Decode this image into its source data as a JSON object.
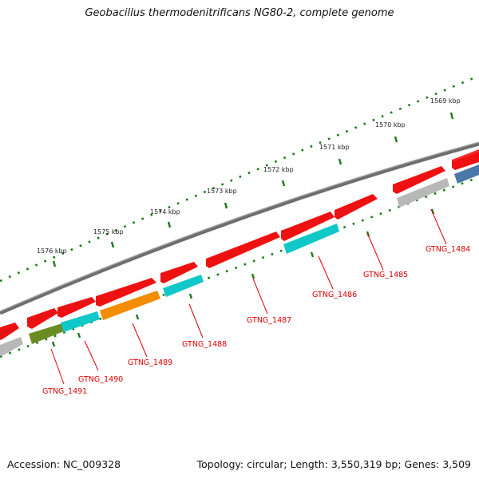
{
  "title": "Geobacillus thermodenitrificans NG80-2, complete genome",
  "accession": "Accession: NC_009328",
  "summary": "Topology: circular; Length: 3,550,319 bp; Genes: 3,509",
  "scale_labels": [
    "1569 kbp",
    "1570 kbp",
    "1571 kbp",
    "1572 kbp",
    "1573 kbp",
    "1574 kbp",
    "1575 kbp",
    "1576 kbp"
  ],
  "gene_labels": [
    "GTNG_1484",
    "GTNG_1485",
    "GTNG_1486",
    "GTNG_1487",
    "GTNG_1488",
    "GTNG_1489",
    "GTNG_1490",
    "GTNG_1491"
  ],
  "colors": {
    "forward_gene": "#ee1111",
    "cyan_gene": "#11c8c8",
    "orange_gene": "#f28c00",
    "olive_gene": "#6b8c22",
    "gray_gene": "#b8b8b8",
    "blue_gene": "#4a78a8",
    "backbone": "#707070",
    "tick": "#1a7a1a",
    "label": "#dd0000"
  }
}
